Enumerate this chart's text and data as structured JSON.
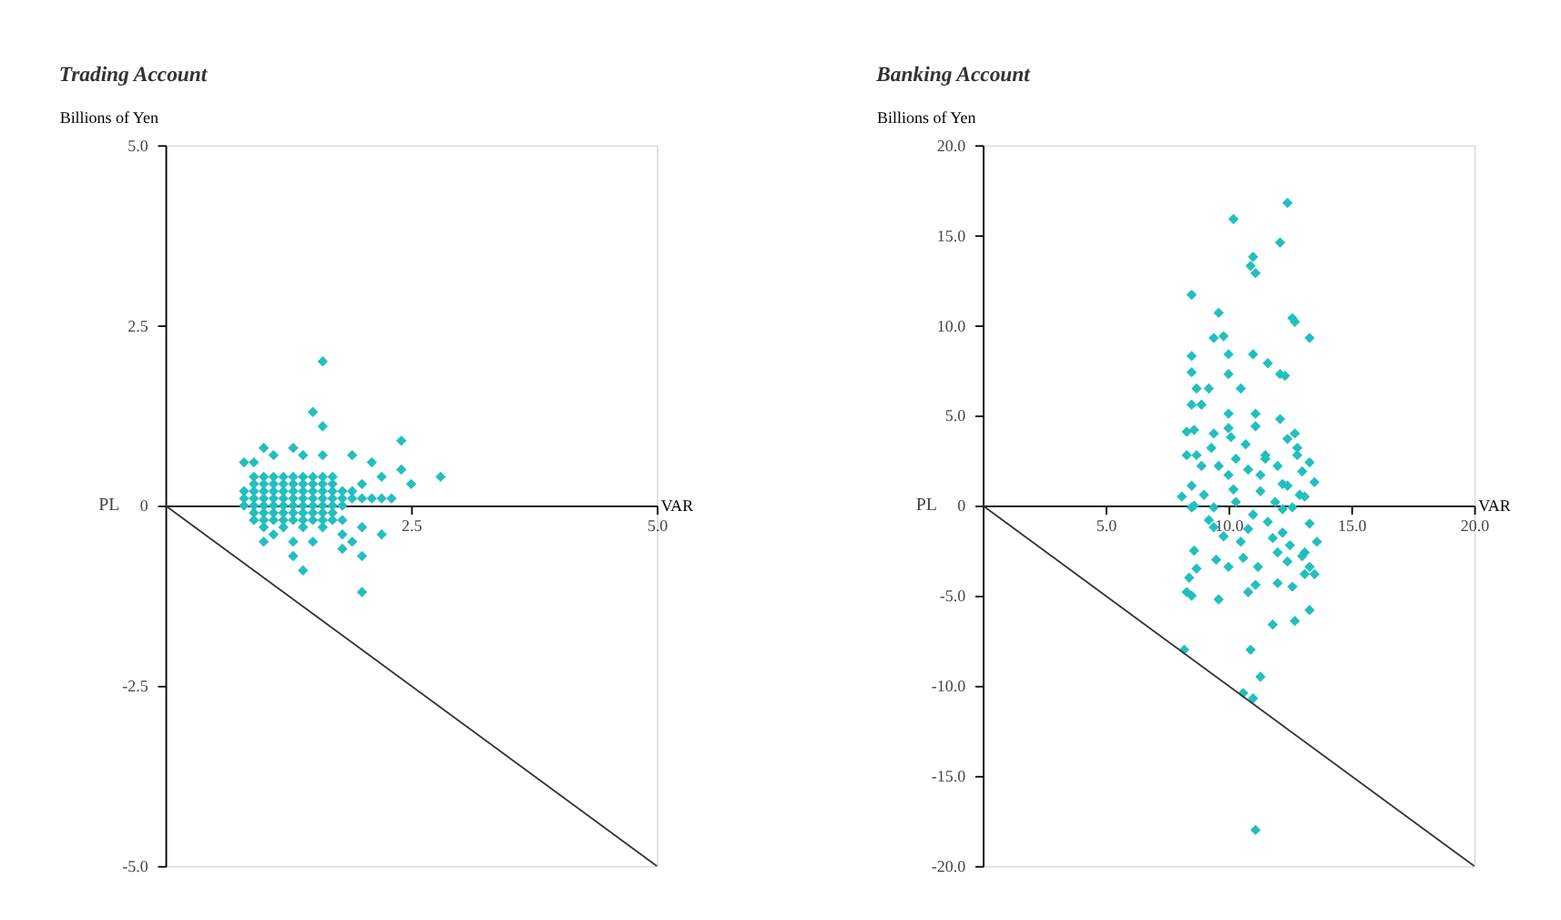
{
  "chart_data": [
    {
      "type": "scatter",
      "title": "Trading Account",
      "ylabel": "Billions of Yen",
      "xlabel": "VAR",
      "annotations": [
        "PL"
      ],
      "xlim": [
        0,
        5
      ],
      "xticks": [
        {
          "value": 2.5,
          "label": "2.5"
        },
        {
          "value": 5,
          "label": "5.0"
        }
      ],
      "ylim": [
        -5,
        5
      ],
      "yticks": [
        {
          "value": -5,
          "label": "-5.0"
        },
        {
          "value": -2.5,
          "label": "-2.5"
        },
        0,
        {
          "value": 2.5,
          "label": "2.5"
        },
        {
          "value": 5,
          "label": "5.0"
        }
      ],
      "series": [
        {
          "marker": "diamond",
          "color": "#22bfbf",
          "x": [
            0.9,
            1.0,
            1.1,
            1.2,
            1.3,
            1.4,
            1.5,
            1.6,
            1.7,
            0.9,
            1.0,
            1.1,
            1.2,
            1.3,
            1.4,
            1.5,
            1.6,
            1.7,
            0.9,
            1.0,
            1.1,
            1.2,
            1.3,
            1.4,
            1.5,
            1.6,
            1.7,
            0.9,
            1.0,
            1.1,
            1.2,
            1.3,
            1.4,
            1.5,
            1.6,
            1.7,
            0.9,
            1.0,
            1.1,
            1.2,
            1.3,
            1.4,
            1.5,
            1.6,
            1.7,
            0.9,
            1.0,
            1.1,
            1.2,
            1.3,
            1.4,
            1.5,
            1.6,
            1.7,
            0.9,
            1.0,
            1.1,
            1.2,
            1.3,
            1.4,
            1.5,
            1.6,
            1.7,
            0.8,
            0.8,
            0.8,
            1.8,
            1.8,
            1.8,
            1.8,
            1.9,
            1.9,
            2.0,
            1.0,
            1.2,
            1.4,
            1.6,
            1.6,
            1.5,
            1.6,
            2.4,
            1.0,
            1.3,
            0.8,
            0.9,
            1.1,
            1.4,
            1.6,
            1.9,
            2.1,
            2.4,
            2.8,
            2.2,
            2.5,
            2.0,
            2.3,
            2.2,
            2.1,
            2.0,
            2.2,
            1.8,
            1.9,
            1.8,
            2.0,
            1.0,
            1.3,
            1.5,
            1.3,
            1.4,
            2.0,
            1.1
          ],
          "values": [
            0.4,
            0.4,
            0.4,
            0.4,
            0.4,
            0.4,
            0.4,
            0.4,
            0.4,
            0.3,
            0.3,
            0.3,
            0.3,
            0.3,
            0.3,
            0.3,
            0.3,
            0.3,
            0.2,
            0.2,
            0.2,
            0.2,
            0.2,
            0.2,
            0.2,
            0.2,
            0.2,
            0.1,
            0.1,
            0.1,
            0.1,
            0.1,
            0.1,
            0.1,
            0.1,
            0.1,
            0,
            0,
            0,
            0,
            0,
            0,
            0,
            0,
            0,
            -0.1,
            -0.1,
            -0.1,
            -0.1,
            -0.1,
            -0.1,
            -0.1,
            -0.1,
            -0.1,
            -0.2,
            -0.2,
            -0.2,
            -0.2,
            -0.2,
            -0.2,
            -0.2,
            -0.2,
            -0.2,
            0.2,
            0.1,
            0,
            0.2,
            0.1,
            0,
            -0.2,
            0.2,
            0.1,
            0.1,
            -0.3,
            -0.3,
            -0.3,
            -0.3,
            2.0,
            1.3,
            1.1,
            0.9,
            0.8,
            0.8,
            0.6,
            0.6,
            0.7,
            0.7,
            0.7,
            0.7,
            0.6,
            0.5,
            0.4,
            0.4,
            0.3,
            0.3,
            0.1,
            0.1,
            0.1,
            -0.3,
            -0.4,
            -0.4,
            -0.5,
            -0.6,
            -0.7,
            -0.5,
            -0.5,
            -0.5,
            -0.7,
            -0.9,
            -1.2,
            -0.4
          ]
        },
        {
          "type": "line",
          "marker": "none",
          "line_style": "solid",
          "color": "#333333",
          "x": [
            0,
            5
          ],
          "values": [
            0,
            -5
          ]
        }
      ]
    },
    {
      "type": "scatter",
      "title": "Banking Account",
      "ylabel": "Billions of Yen",
      "xlabel": "VAR",
      "annotations": [
        "PL"
      ],
      "xlim": [
        0,
        20
      ],
      "xticks": [
        {
          "value": 5,
          "label": "5.0"
        },
        {
          "value": 10,
          "label": "10.0"
        },
        {
          "value": 15,
          "label": "15.0"
        },
        {
          "value": 20,
          "label": "20.0"
        }
      ],
      "ylim": [
        -20,
        20
      ],
      "yticks": [
        {
          "value": -20,
          "label": "-20.0"
        },
        {
          "value": -15,
          "label": "-15.0"
        },
        {
          "value": -10,
          "label": "-10.0"
        },
        {
          "value": -5,
          "label": "-5.0"
        },
        0,
        {
          "value": 5,
          "label": "5.0"
        },
        {
          "value": 10,
          "label": "10.0"
        },
        {
          "value": 15,
          "label": "15.0"
        },
        {
          "value": 20,
          "label": "20.0"
        }
      ],
      "series": [
        {
          "marker": "diamond",
          "color": "#22bfbf",
          "x": [
            12.4,
            10.2,
            12.1,
            11.0,
            10.9,
            11.1,
            8.5,
            9.6,
            12.6,
            12.7,
            13.3,
            9.4,
            9.8,
            8.5,
            10.0,
            11.0,
            11.6,
            8.5,
            10.0,
            12.1,
            12.3,
            8.7,
            9.2,
            10.5,
            8.5,
            8.9,
            10.0,
            11.1,
            11.1,
            12.1,
            8.3,
            8.6,
            9.4,
            10.0,
            10.1,
            12.4,
            12.7,
            10.7,
            8.3,
            8.7,
            9.3,
            10.3,
            11.5,
            12.8,
            13.3,
            8.9,
            9.6,
            10.8,
            12.0,
            10.0,
            13.0,
            13.5,
            8.1,
            8.5,
            9.0,
            10.2,
            11.3,
            11.3,
            12.2,
            11.9,
            13.1,
            8.6,
            9.4,
            12.6,
            8.5,
            9.4,
            9.8,
            10.8,
            11.6,
            12.2,
            13.3,
            13.6,
            8.6,
            8.7,
            9.5,
            10.0,
            10.6,
            11.2,
            12.0,
            12.4,
            13.1,
            13.3,
            11.1,
            12.0,
            12.6,
            13.1,
            13.5,
            8.4,
            8.3,
            8.5,
            9.6,
            10.8,
            11.8,
            12.7,
            13.3,
            8.2,
            10.9,
            11.3,
            10.6,
            11.0,
            11.1,
            11.8,
            12.5,
            12.9,
            11.0,
            12.2,
            10.5,
            13.0,
            12.4,
            11.5,
            12.8,
            9.2,
            10.3
          ],
          "values": [
            16.8,
            15.9,
            14.6,
            13.8,
            13.3,
            12.9,
            11.7,
            10.7,
            10.4,
            10.2,
            9.3,
            9.3,
            9.4,
            8.3,
            8.4,
            8.4,
            7.9,
            7.4,
            7.3,
            7.3,
            7.2,
            6.5,
            6.5,
            6.5,
            5.6,
            5.6,
            5.1,
            5.1,
            4.4,
            4.8,
            4.1,
            4.2,
            4.0,
            4.3,
            3.8,
            3.7,
            4.0,
            3.4,
            2.8,
            2.8,
            3.2,
            2.6,
            2.6,
            2.8,
            2.4,
            2.2,
            2.2,
            2.0,
            2.2,
            1.7,
            1.9,
            1.3,
            0.5,
            1.1,
            0.6,
            0.9,
            1.7,
            0.8,
            1.2,
            0.2,
            0.5,
            0.0,
            -0.1,
            -0.1,
            -0.1,
            -1.2,
            -1.7,
            -1.3,
            -0.9,
            -1.5,
            -1.0,
            -2.0,
            -2.5,
            -3.5,
            -3.0,
            -3.4,
            -2.9,
            -3.4,
            -2.6,
            -3.1,
            -2.6,
            -3.4,
            -4.4,
            -4.3,
            -4.5,
            -3.8,
            -3.8,
            -4.0,
            -4.8,
            -5.0,
            -5.2,
            -4.8,
            -6.6,
            -6.4,
            -5.8,
            -8.0,
            -8.0,
            -9.5,
            -10.4,
            -10.7,
            -18.0,
            -1.8,
            -2.2,
            0.6,
            -0.5,
            -0.2,
            -2.0,
            -2.8,
            1.1,
            2.8,
            3.2,
            -0.8,
            0.2
          ]
        },
        {
          "type": "line",
          "marker": "none",
          "line_style": "solid",
          "color": "#333333",
          "x": [
            0,
            20
          ],
          "values": [
            0,
            -20
          ]
        }
      ]
    }
  ]
}
